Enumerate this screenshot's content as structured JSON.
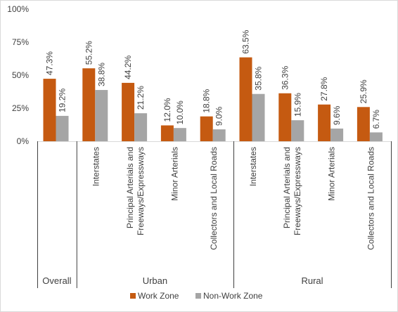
{
  "chart_data": {
    "type": "bar",
    "ylim": [
      0,
      100
    ],
    "yticks": [
      "0%",
      "25%",
      "50%",
      "75%",
      "100%"
    ],
    "groups": [
      {
        "name": "Overall",
        "categories": [
          ""
        ]
      },
      {
        "name": "Urban",
        "categories": [
          "Interstates",
          "Principal Arterials and Freeways/Expressways",
          "Minor Arterials",
          "Collectors and Local Roads"
        ]
      },
      {
        "name": "Rural",
        "categories": [
          "Interstates",
          "Principal Arterials and Freeways/Expressways",
          "Minor Arterials",
          "Collectors and Local Roads"
        ]
      }
    ],
    "category_label_lines": [
      [],
      [
        "Interstates"
      ],
      [
        "Principal Arterials and",
        "Freeways/Expressways"
      ],
      [
        "Minor Arterials"
      ],
      [
        "Collectors and Local Roads"
      ],
      [
        "Interstates"
      ],
      [
        "Principal Arterials and",
        "Freeways/Expressways"
      ],
      [
        "Minor Arterials"
      ],
      [
        "Collectors and Local Roads"
      ]
    ],
    "series": [
      {
        "name": "Work Zone",
        "color": "#c55a11",
        "values": [
          47.3,
          55.2,
          44.2,
          12.0,
          18.8,
          63.5,
          36.3,
          27.8,
          25.9
        ],
        "labels": [
          "47.3%",
          "55.2%",
          "44.2%",
          "12.0%",
          "18.8%",
          "63.5%",
          "36.3%",
          "27.8%",
          "25.9%"
        ]
      },
      {
        "name": "Non-Work Zone",
        "color": "#a5a5a5",
        "values": [
          19.2,
          38.8,
          21.2,
          10.0,
          9.0,
          35.8,
          15.9,
          9.6,
          6.7
        ],
        "labels": [
          "19.2%",
          "38.8%",
          "21.2%",
          "10.0%",
          "9.0%",
          "35.8%",
          "15.9%",
          "9.6%",
          "6.7%"
        ]
      }
    ],
    "legend_position": "bottom",
    "grid": false
  }
}
